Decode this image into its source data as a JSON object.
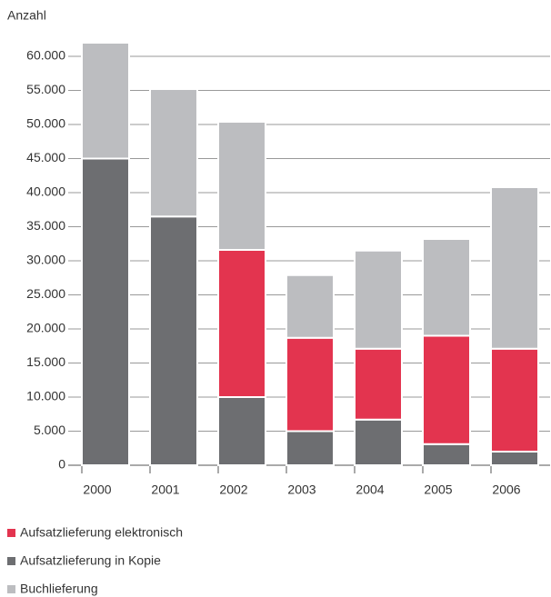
{
  "chart_data": {
    "type": "stacked_bar",
    "y_label": "Anzahl",
    "categories": [
      "2000",
      "2001",
      "2002",
      "2003",
      "2004",
      "2005",
      "2006"
    ],
    "series": [
      {
        "name": "Aufsatzlieferung in Kopie",
        "color": "#6d6e71",
        "values": [
          45000,
          36500,
          10000,
          5000,
          6700,
          3100,
          2000
        ]
      },
      {
        "name": "Aufsatzlieferung elektronisch",
        "color": "#e3344f",
        "values": [
          0,
          0,
          21600,
          13700,
          10400,
          15900,
          15100
        ]
      },
      {
        "name": "Buchlieferung",
        "color": "#bcbdc0",
        "values": [
          17000,
          18700,
          18800,
          9200,
          14400,
          14200,
          23700
        ]
      }
    ],
    "legend_order": [
      1,
      0,
      2
    ],
    "ylim": [
      0,
      60000
    ],
    "yticks": [
      0,
      {
        "value": 5000,
        "label": "5.000"
      },
      {
        "value": 10000,
        "label": "10.000"
      },
      {
        "value": 15000,
        "label": "15.000"
      },
      {
        "value": 20000,
        "label": "20.000"
      },
      {
        "value": 25000,
        "label": "25.000"
      },
      {
        "value": 30000,
        "label": "30.000"
      },
      {
        "value": 35000,
        "label": "35.000"
      },
      {
        "value": 40000,
        "label": "40.000"
      },
      {
        "value": 45000,
        "label": "45.000"
      },
      {
        "value": 50000,
        "label": "50.000"
      },
      {
        "value": 55000,
        "label": "55.000"
      },
      {
        "value": 60000,
        "label": "60.000"
      }
    ],
    "grid": true
  }
}
